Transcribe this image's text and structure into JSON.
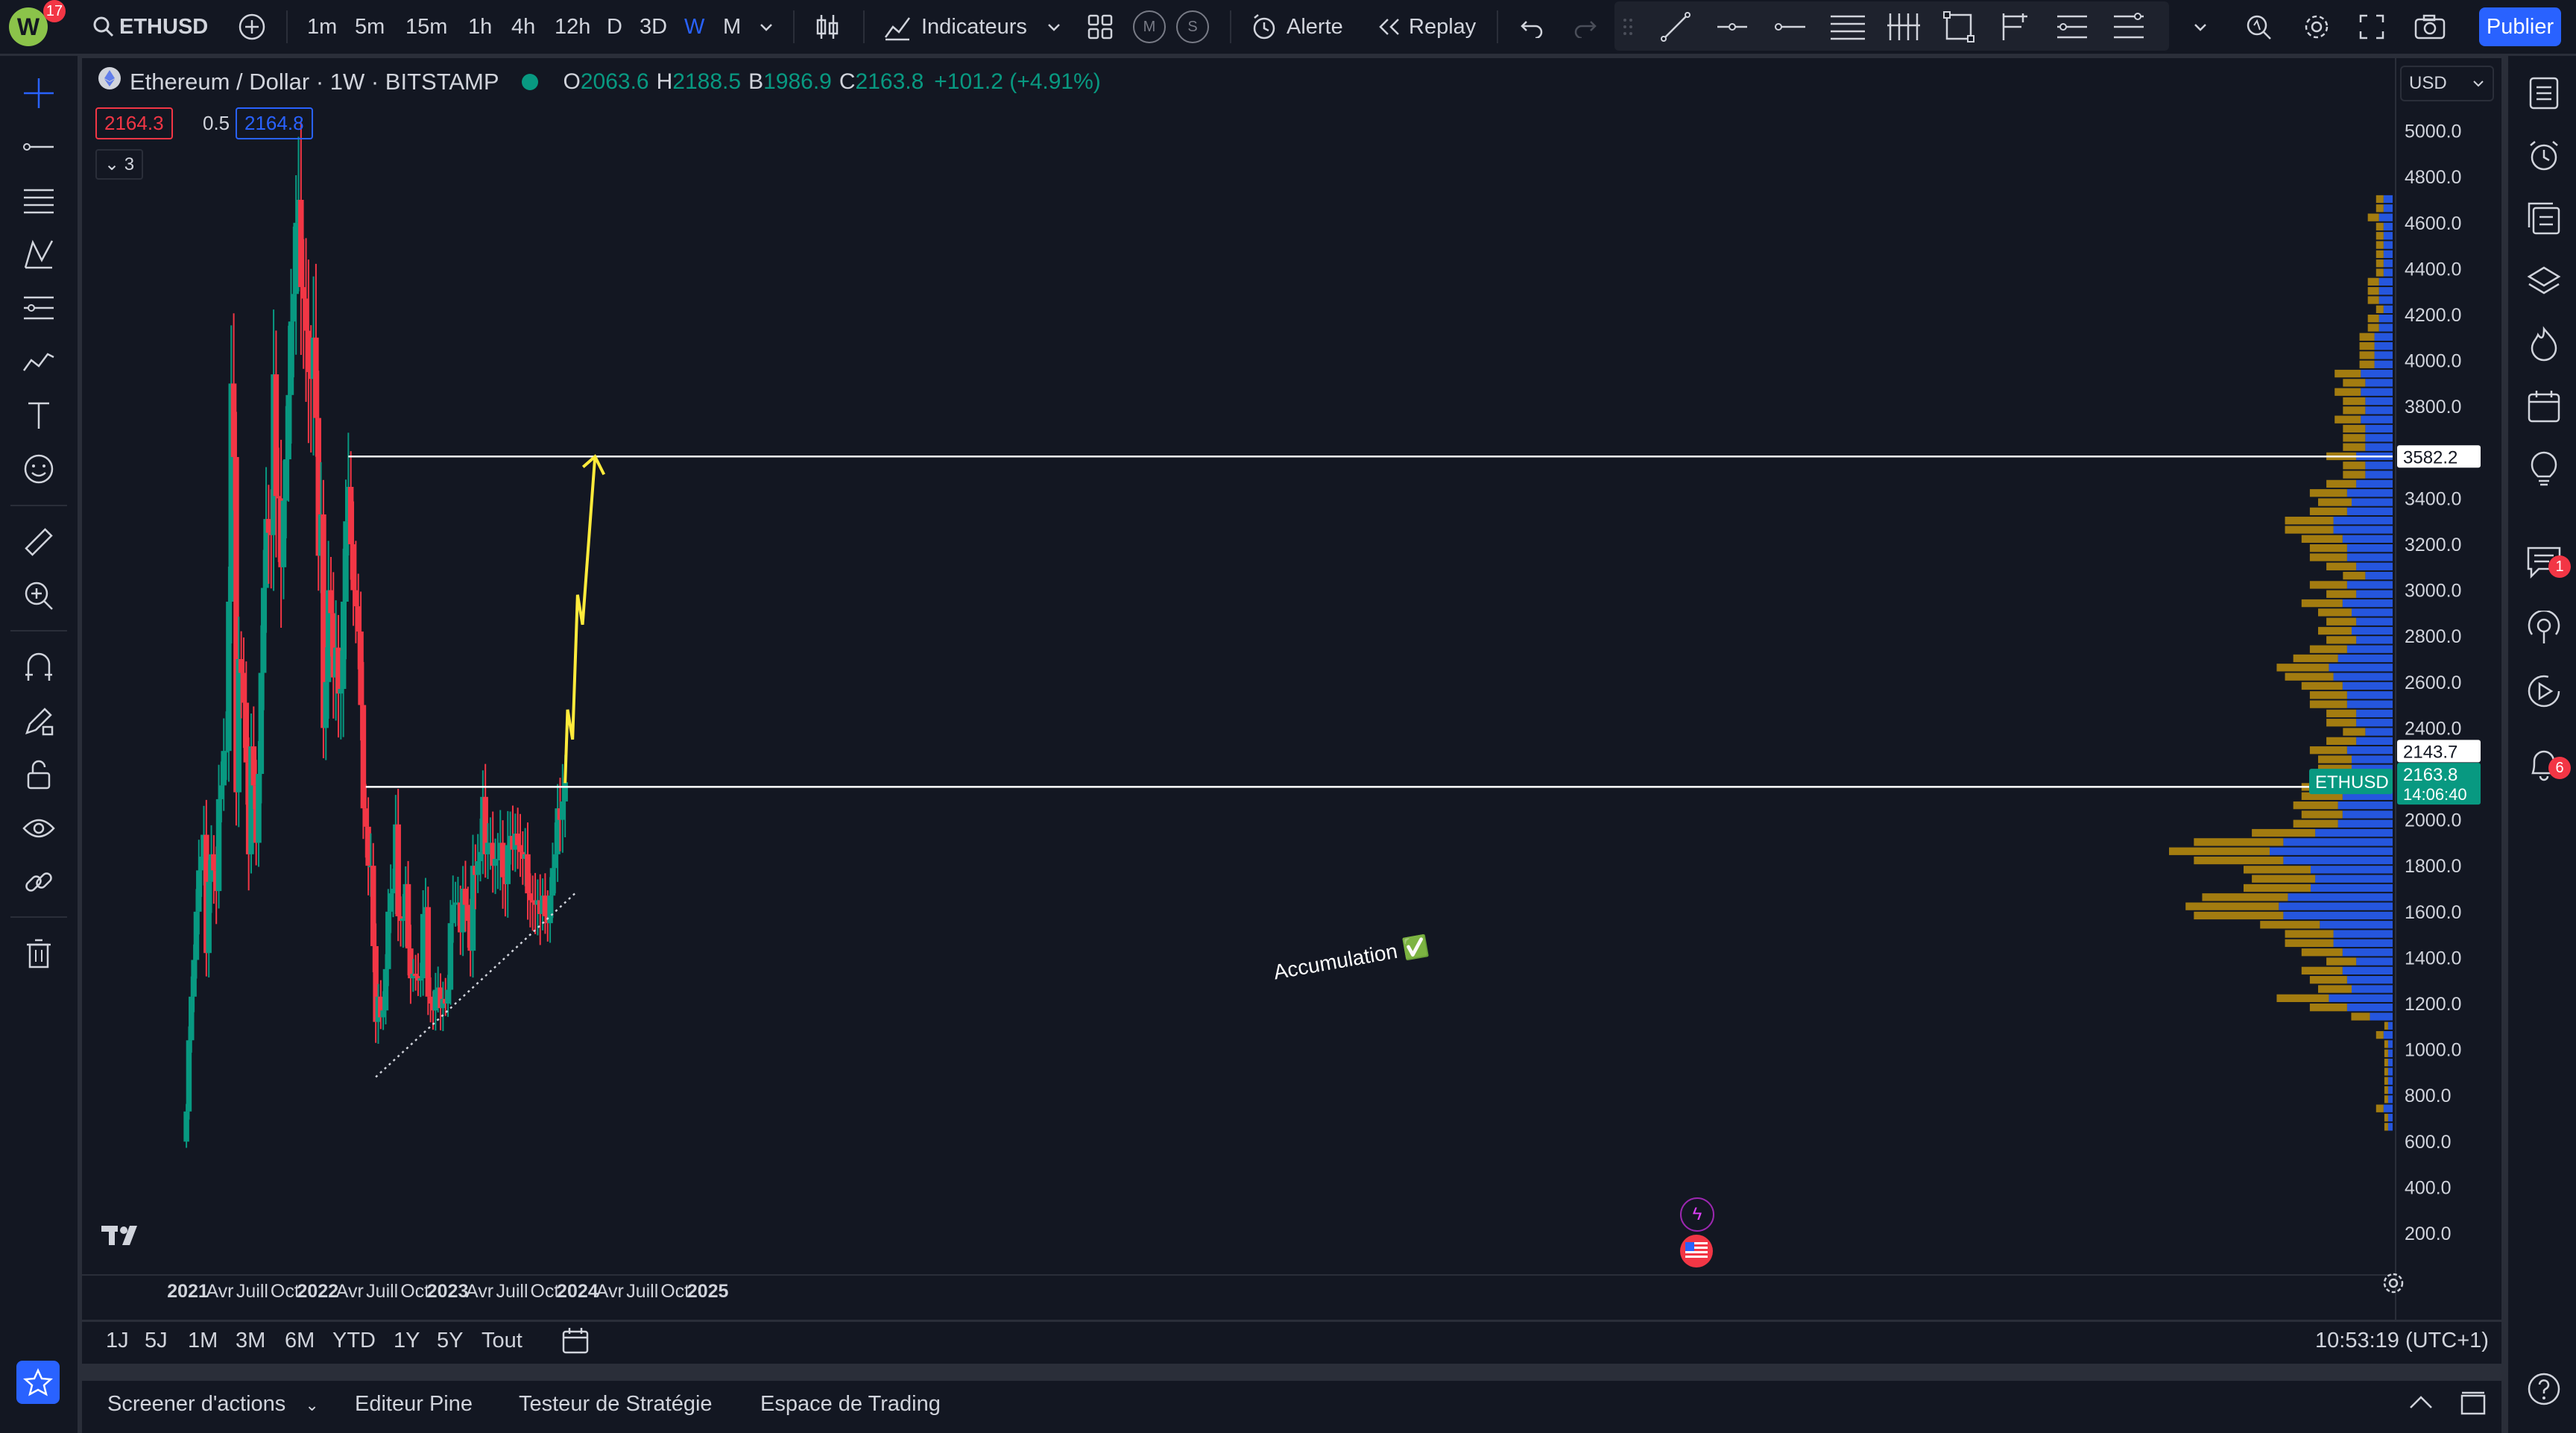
{
  "toolbar": {
    "avatar_letter": "W",
    "avatar_count": "17",
    "symbol": "ETHUSD",
    "intervals": [
      "1m",
      "5m",
      "15m",
      "1h",
      "4h",
      "12h",
      "D",
      "3D",
      "W",
      "M"
    ],
    "active_interval": "W",
    "indicators_label": "Indicateurs",
    "m_label": "M",
    "s_label": "S",
    "alert_label": "Alerte",
    "replay_label": "Replay",
    "publish_label": "Publier"
  },
  "legend": {
    "title": "Ethereum / Dollar · 1W · BITSTAMP",
    "o_label": "O",
    "o_value": "2063.6",
    "h_label": "H",
    "h_value": "2188.5",
    "b_label": "B",
    "b_value": "1986.9",
    "c_label": "C",
    "c_value": "2163.8",
    "change": "+101.2 (+4.91%)",
    "sell": "2164.3",
    "spread": "0.5",
    "buy": "2164.8",
    "collapse_count": "3"
  },
  "currency": "USD",
  "price_labels": [
    "5000.0",
    "4800.0",
    "4600.0",
    "4400.0",
    "4200.0",
    "4000.0",
    "3800.0",
    "3600.0",
    "3400.0",
    "3200.0",
    "3000.0",
    "2800.0",
    "2600.0",
    "2400.0",
    "2200.0",
    "2000.0",
    "1800.0",
    "1600.0",
    "1400.0",
    "1200.0",
    "1000.0",
    "800.0",
    "600.0",
    "400.0",
    "200.0"
  ],
  "time_labels": [
    {
      "text": "2021",
      "bold": true
    },
    {
      "text": "Avr",
      "bold": false
    },
    {
      "text": "Juill",
      "bold": false
    },
    {
      "text": "Oct",
      "bold": false
    },
    {
      "text": "2022",
      "bold": true
    },
    {
      "text": "Avr",
      "bold": false
    },
    {
      "text": "Juill",
      "bold": false
    },
    {
      "text": "Oct",
      "bold": false
    },
    {
      "text": "2023",
      "bold": true
    },
    {
      "text": "Avr",
      "bold": false
    },
    {
      "text": "Juill",
      "bold": false
    },
    {
      "text": "Oct",
      "bold": false
    },
    {
      "text": "2024",
      "bold": true
    },
    {
      "text": "Avr",
      "bold": false
    },
    {
      "text": "Juill",
      "bold": false
    },
    {
      "text": "Oct",
      "bold": false
    },
    {
      "text": "2025",
      "bold": true
    }
  ],
  "price_badges": {
    "resistance": "3582.2",
    "symbol_tag": "ETHUSD",
    "last_price": "2163.8",
    "countdown": "14:06:40",
    "support": "2143.7"
  },
  "annotation": {
    "text": "Accumulation ✅"
  },
  "ranges": [
    "1J",
    "5J",
    "1M",
    "3M",
    "6M",
    "YTD",
    "1Y",
    "5Y",
    "Tout"
  ],
  "clock": "10:53:19 (UTC+1)",
  "footer_tabs": [
    "Screener d'actions",
    "Editeur Pine",
    "Testeur de Stratégie",
    "Espace de Trading"
  ],
  "right_badges": {
    "chat": "1",
    "alerts": "6"
  },
  "colors": {
    "background": "#131722",
    "up": "#089981",
    "down": "#f23645",
    "volume_up": "#2962ff",
    "volume_down": "#c8960c",
    "accent": "#2962ff",
    "projection": "#ffeb3b"
  },
  "chart_data": {
    "type": "candlestick",
    "symbol": "ETHUSD",
    "exchange": "BITSTAMP",
    "interval": "1W",
    "ylim": [
      200,
      5000
    ],
    "last_close": 2163.8,
    "resistance_level": 3582.2,
    "support_level": 2143.7,
    "trendline": {
      "from": [
        "2022-06-13",
        880
      ],
      "to": [
        "2023-12-25",
        1680
      ]
    },
    "projection": [
      [
        "2023-11-27",
        2160
      ],
      [
        "2023-12-04",
        2480
      ],
      [
        "2023-12-18",
        2350
      ],
      [
        "2024-01-01",
        2980
      ],
      [
        "2024-01-15",
        2850
      ],
      [
        "2024-02-19",
        3582
      ]
    ],
    "weekly_close": [
      [
        "2020-12-28",
        730
      ],
      [
        "2021-01-04",
        1040
      ],
      [
        "2021-01-11",
        1230
      ],
      [
        "2021-01-18",
        1390
      ],
      [
        "2021-01-25",
        1600
      ],
      [
        "2021-02-01",
        1780
      ],
      [
        "2021-02-08",
        1840
      ],
      [
        "2021-02-15",
        1935
      ],
      [
        "2021-02-22",
        1420
      ],
      [
        "2021-03-01",
        1730
      ],
      [
        "2021-03-08",
        1850
      ],
      [
        "2021-03-15",
        1780
      ],
      [
        "2021-03-22",
        1690
      ],
      [
        "2021-03-29",
        2090
      ],
      [
        "2021-04-05",
        2150
      ],
      [
        "2021-04-12",
        2300
      ],
      [
        "2021-04-19",
        2300
      ],
      [
        "2021-04-26",
        2950
      ],
      [
        "2021-05-03",
        3900
      ],
      [
        "2021-05-10",
        3580
      ],
      [
        "2021-05-17",
        2120
      ],
      [
        "2021-05-24",
        2700
      ],
      [
        "2021-05-31",
        2640
      ],
      [
        "2021-06-07",
        2510
      ],
      [
        "2021-06-14",
        2250
      ],
      [
        "2021-06-21",
        1850
      ],
      [
        "2021-06-28",
        2320
      ],
      [
        "2021-07-05",
        2150
      ],
      [
        "2021-07-12",
        1900
      ],
      [
        "2021-07-19",
        2200
      ],
      [
        "2021-07-26",
        2640
      ],
      [
        "2021-08-02",
        3010
      ],
      [
        "2021-08-09",
        3310
      ],
      [
        "2021-08-16",
        3250
      ],
      [
        "2021-08-23",
        3240
      ],
      [
        "2021-08-30",
        3940
      ],
      [
        "2021-09-06",
        3410
      ],
      [
        "2021-09-13",
        3400
      ],
      [
        "2021-09-20",
        3100
      ],
      [
        "2021-09-27",
        3390
      ],
      [
        "2021-10-04",
        3570
      ],
      [
        "2021-10-11",
        3850
      ],
      [
        "2021-10-18",
        4170
      ],
      [
        "2021-10-25",
        4290
      ],
      [
        "2021-11-01",
        4600
      ],
      [
        "2021-11-08",
        4700
      ],
      [
        "2021-11-15",
        4320
      ],
      [
        "2021-11-22",
        4270
      ],
      [
        "2021-11-29",
        4130
      ],
      [
        "2021-12-06",
        3950
      ],
      [
        "2021-12-13",
        3920
      ],
      [
        "2021-12-20",
        4100
      ],
      [
        "2021-12-27",
        3750
      ],
      [
        "2022-01-03",
        3150
      ],
      [
        "2022-01-10",
        3330
      ],
      [
        "2022-01-17",
        2400
      ],
      [
        "2022-01-24",
        2600
      ],
      [
        "2022-01-31",
        3000
      ],
      [
        "2022-02-07",
        2900
      ],
      [
        "2022-02-14",
        2620
      ],
      [
        "2022-02-21",
        2750
      ],
      [
        "2022-02-28",
        2550
      ],
      [
        "2022-03-07",
        2570
      ],
      [
        "2022-03-14",
        2950
      ],
      [
        "2022-03-21",
        3300
      ],
      [
        "2022-03-28",
        3450
      ],
      [
        "2022-04-04",
        3200
      ],
      [
        "2022-04-11",
        3000
      ],
      [
        "2022-04-18",
        2930
      ],
      [
        "2022-04-25",
        2820
      ],
      [
        "2022-05-02",
        2500
      ],
      [
        "2022-05-09",
        2050
      ],
      [
        "2022-05-16",
        1970
      ],
      [
        "2022-05-23",
        1800
      ],
      [
        "2022-05-30",
        1800
      ],
      [
        "2022-06-06",
        1450
      ],
      [
        "2022-06-13",
        1120
      ],
      [
        "2022-06-20",
        1230
      ],
      [
        "2022-06-27",
        1140
      ],
      [
        "2022-07-04",
        1170
      ],
      [
        "2022-07-11",
        1350
      ],
      [
        "2022-07-18",
        1600
      ],
      [
        "2022-07-25",
        1680
      ],
      [
        "2022-08-01",
        1700
      ],
      [
        "2022-08-08",
        1980
      ],
      [
        "2022-08-15",
        1580
      ],
      [
        "2022-08-22",
        1560
      ],
      [
        "2022-08-29",
        1570
      ],
      [
        "2022-09-05",
        1720
      ],
      [
        "2022-09-12",
        1440
      ],
      [
        "2022-09-19",
        1310
      ],
      [
        "2022-09-26",
        1330
      ],
      [
        "2022-10-03",
        1320
      ],
      [
        "2022-10-10",
        1300
      ],
      [
        "2022-10-17",
        1310
      ],
      [
        "2022-10-24",
        1590
      ],
      [
        "2022-10-31",
        1620
      ],
      [
        "2022-11-07",
        1230
      ],
      [
        "2022-11-14",
        1200
      ],
      [
        "2022-11-21",
        1170
      ],
      [
        "2022-11-28",
        1260
      ],
      [
        "2022-12-05",
        1270
      ],
      [
        "2022-12-12",
        1180
      ],
      [
        "2022-12-19",
        1220
      ],
      [
        "2022-12-26",
        1200
      ],
      [
        "2023-01-02",
        1260
      ],
      [
        "2023-01-09",
        1550
      ],
      [
        "2023-01-16",
        1630
      ],
      [
        "2023-01-23",
        1640
      ],
      [
        "2023-01-30",
        1640
      ],
      [
        "2023-02-06",
        1510
      ],
      [
        "2023-02-13",
        1700
      ],
      [
        "2023-02-20",
        1630
      ],
      [
        "2023-02-27",
        1560
      ],
      [
        "2023-03-06",
        1430
      ],
      [
        "2023-03-13",
        1800
      ],
      [
        "2023-03-20",
        1760
      ],
      [
        "2023-03-27",
        1820
      ],
      [
        "2023-04-03",
        1860
      ],
      [
        "2023-04-10",
        2100
      ],
      [
        "2023-04-17",
        1850
      ],
      [
        "2023-04-24",
        1900
      ],
      [
        "2023-05-01",
        1900
      ],
      [
        "2023-05-08",
        1800
      ],
      [
        "2023-05-15",
        1830
      ],
      [
        "2023-05-22",
        1830
      ],
      [
        "2023-05-29",
        1900
      ],
      [
        "2023-06-05",
        1750
      ],
      [
        "2023-06-12",
        1720
      ],
      [
        "2023-06-19",
        1890
      ],
      [
        "2023-06-26",
        1930
      ],
      [
        "2023-07-03",
        1870
      ],
      [
        "2023-07-10",
        1940
      ],
      [
        "2023-07-17",
        1890
      ],
      [
        "2023-07-24",
        1860
      ],
      [
        "2023-07-31",
        1830
      ],
      [
        "2023-08-07",
        1850
      ],
      [
        "2023-08-14",
        1680
      ],
      [
        "2023-08-21",
        1650
      ],
      [
        "2023-08-28",
        1640
      ],
      [
        "2023-09-04",
        1630
      ],
      [
        "2023-09-11",
        1650
      ],
      [
        "2023-09-18",
        1590
      ],
      [
        "2023-09-25",
        1670
      ],
      [
        "2023-10-02",
        1580
      ],
      [
        "2023-10-09",
        1550
      ],
      [
        "2023-10-16",
        1670
      ],
      [
        "2023-10-23",
        1790
      ],
      [
        "2023-10-30",
        1850
      ],
      [
        "2023-11-06",
        2050
      ],
      [
        "2023-11-13",
        2000
      ],
      [
        "2023-11-20",
        2080
      ],
      [
        "2023-11-27",
        2163.8
      ]
    ]
  }
}
